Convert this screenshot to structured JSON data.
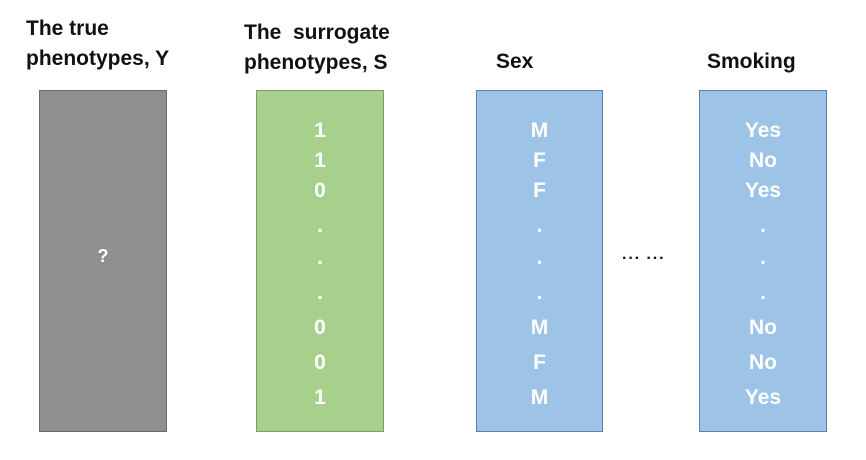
{
  "headers": {
    "true_phenotype": [
      "The true",
      "phenotypes, Y"
    ],
    "surrogate": [
      "The  surrogate",
      "phenotypes, S"
    ],
    "sex": "Sex",
    "smoking": "Smoking"
  },
  "columns": {
    "true_phenotype": {
      "placeholder": "?"
    },
    "surrogate": {
      "values": [
        "1",
        "1",
        "0",
        ".",
        ".",
        ".",
        "0",
        "0",
        "1"
      ]
    },
    "sex": {
      "values": [
        "M",
        "F",
        "F",
        ".",
        ".",
        ".",
        "M",
        "F",
        "M"
      ]
    },
    "smoking": {
      "values": [
        "Yes",
        "No",
        "Yes",
        ".",
        ".",
        ".",
        "No",
        "No",
        "Yes"
      ]
    }
  },
  "ellipsis": "··· ···",
  "colors": {
    "true_fill": "#8f8f8f",
    "surrogate_fill": "#a8d08d",
    "covariate_fill": "#9dc3e6",
    "cell_text": "#ffffff"
  }
}
